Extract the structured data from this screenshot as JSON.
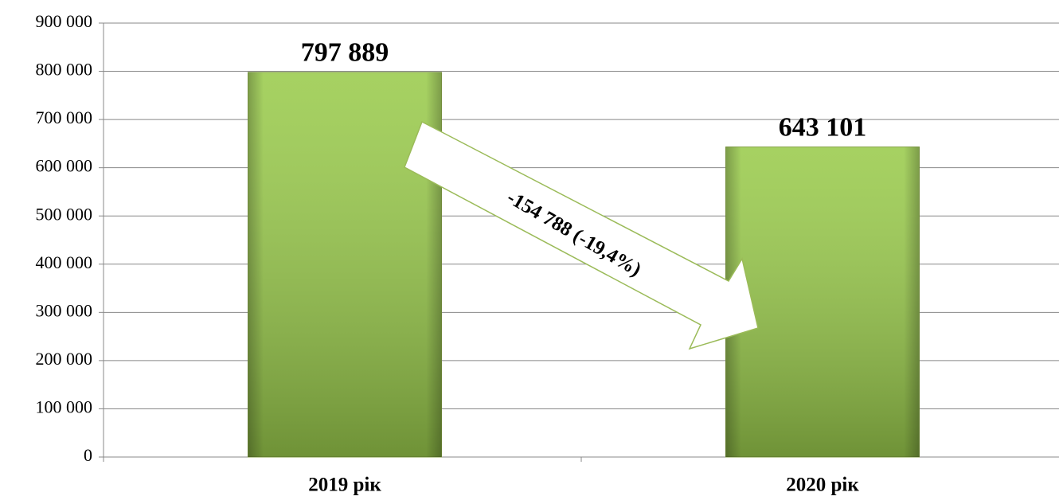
{
  "chart_data": {
    "type": "bar",
    "categories": [
      "2019 рік",
      "2020 рік"
    ],
    "values": [
      797889,
      643101
    ],
    "value_labels": [
      "797 889",
      "643 101"
    ],
    "color": "#9acb4c",
    "annotation": "-154 788 (-19,4%)",
    "ylim": [
      0,
      900000
    ],
    "yticks": [
      {
        "value": 0,
        "label": "0"
      },
      {
        "value": 100000,
        "label": "100 000"
      },
      {
        "value": 200000,
        "label": "200 000"
      },
      {
        "value": 300000,
        "label": "300 000"
      },
      {
        "value": 400000,
        "label": "400 000"
      },
      {
        "value": 500000,
        "label": "500 000"
      },
      {
        "value": 600000,
        "label": "600 000"
      },
      {
        "value": 700000,
        "label": "700 000"
      },
      {
        "value": 800000,
        "label": "800 000"
      },
      {
        "value": 900000,
        "label": "900 000"
      }
    ],
    "grid": true
  }
}
